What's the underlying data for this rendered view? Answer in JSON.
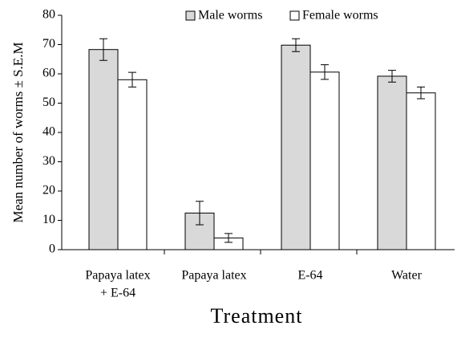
{
  "chart_data": {
    "type": "bar",
    "y_label": "Mean number of worms ± S.E.M",
    "x_label": "Treatment",
    "categories": [
      [
        "Papaya latex",
        "+ E-64"
      ],
      [
        "Papaya latex"
      ],
      [
        "E-64"
      ],
      [
        "Water"
      ]
    ],
    "series": [
      {
        "name": "Male worms",
        "color": "#d9d9d9",
        "values": [
          68.3,
          12.5,
          69.8,
          59.2
        ],
        "errors": [
          3.7,
          4.0,
          2.2,
          2.0
        ]
      },
      {
        "name": "Female worms",
        "color": "#ffffff",
        "values": [
          58.0,
          4.0,
          60.6,
          53.5
        ],
        "errors": [
          2.5,
          1.5,
          2.5,
          2.0
        ]
      }
    ],
    "ylim": [
      0,
      80
    ],
    "yticks": [
      0,
      10,
      20,
      30,
      40,
      50,
      60,
      70,
      80
    ],
    "grid": false,
    "legend": "top"
  }
}
